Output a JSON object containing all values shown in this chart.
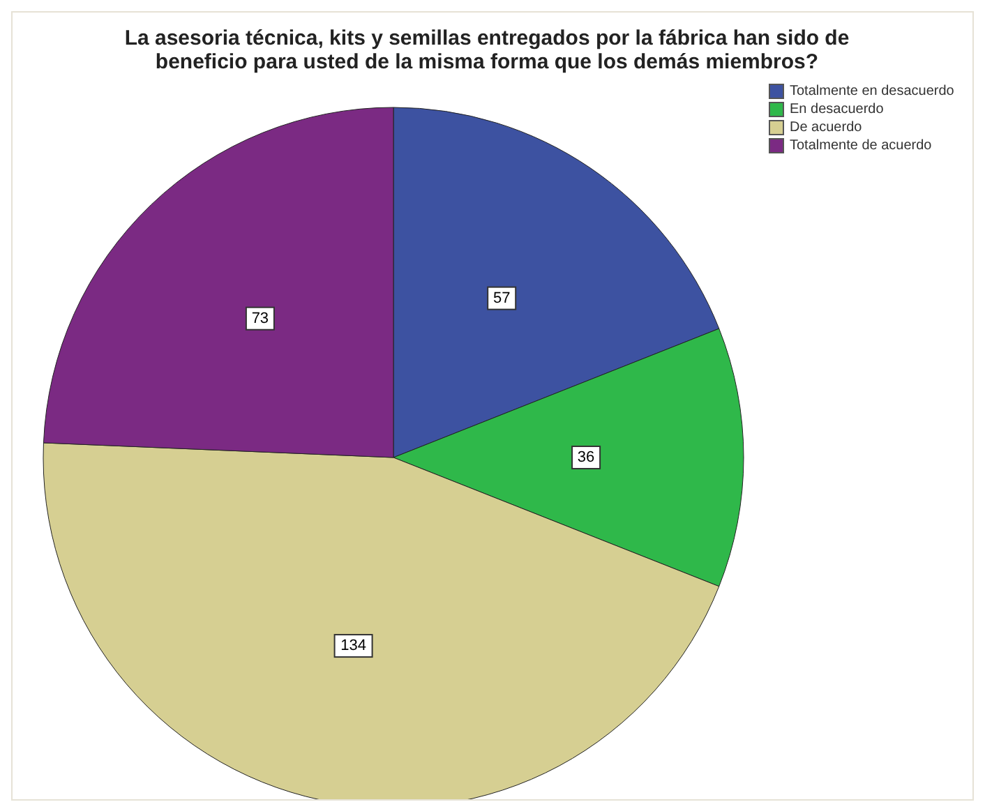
{
  "chart_data": {
    "type": "pie",
    "title": "La asesoria técnica, kits y semillas entregados por la fábrica han sido de beneficio para usted de la misma forma que los demás miembros?",
    "categories": [
      "Totalmente en desacuerdo",
      "En desacuerdo",
      "De acuerdo",
      "Totalmente de acuerdo"
    ],
    "values": [
      57,
      36,
      134,
      73
    ],
    "colors": [
      "#3d52a1",
      "#2fb84a",
      "#d6cf92",
      "#7b2a83"
    ],
    "data_labels": true,
    "legend": "top right"
  }
}
